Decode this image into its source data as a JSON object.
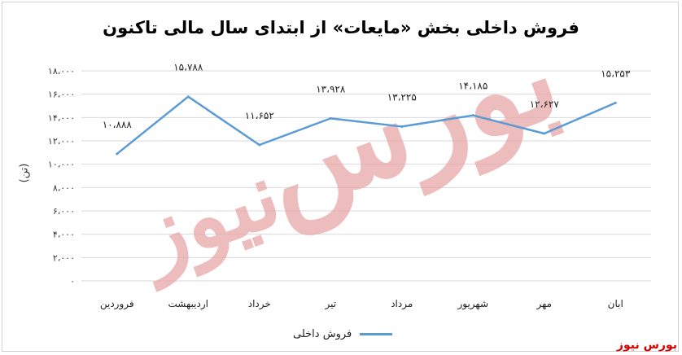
{
  "brand": "بورس نیوز",
  "chart_data": {
    "type": "line",
    "title": "فروش داخلی بخش «مایعات» از ابتدای سال مالی تاکنون",
    "ylabel": "(تن)",
    "xlabel": "",
    "categories": [
      "فروردین",
      "اردیبهشت",
      "خرداد",
      "تیر",
      "مرداد",
      "شهریور",
      "مهر",
      "ابان"
    ],
    "series": [
      {
        "name": "فروش داخلی",
        "values": [
          10888,
          15788,
          11652,
          13928,
          13225,
          14185,
          12627,
          15253
        ],
        "labels": [
          "۱۰،۸۸۸",
          "۱۵،۷۸۸",
          "۱۱،۶۵۲",
          "۱۳،۹۲۸",
          "۱۳،۲۲۵",
          "۱۴،۱۸۵",
          "۱۲،۶۲۷",
          "۱۵،۲۵۳"
        ],
        "color": "#5b9bd5"
      }
    ],
    "ylim": [
      0,
      18000
    ],
    "yticks": [
      0,
      2000,
      4000,
      6000,
      8000,
      10000,
      12000,
      14000,
      16000,
      18000
    ],
    "ytick_labels": [
      "۰",
      "۲،۰۰۰",
      "۴،۰۰۰",
      "۶،۰۰۰",
      "۸،۰۰۰",
      "۱۰،۰۰۰",
      "۱۲،۰۰۰",
      "۱۴،۰۰۰",
      "۱۶،۰۰۰",
      "۱۸،۰۰۰"
    ],
    "grid": true,
    "legend": "bottom-center"
  },
  "watermark": {
    "line1": "بورس",
    "line2": "نیوز",
    "color": "#e8a8a8"
  }
}
